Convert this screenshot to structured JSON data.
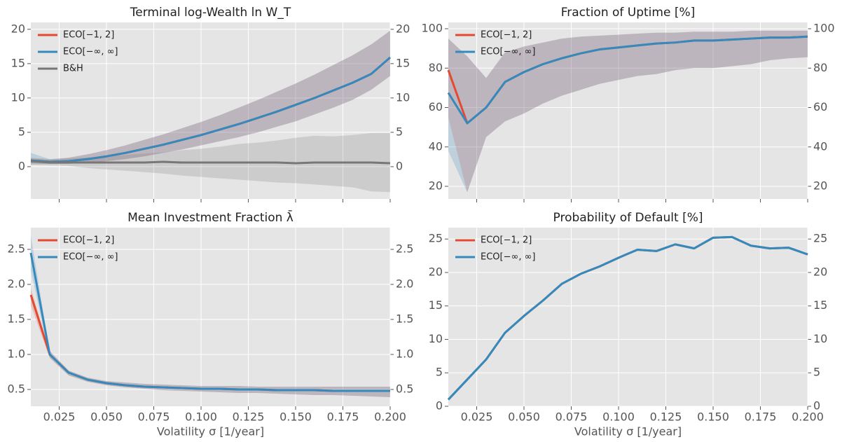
{
  "chart_data": [
    {
      "type": "line",
      "title": "Terminal log-Wealth ln W_T",
      "x": [
        0.01,
        0.02,
        0.03,
        0.04,
        0.05,
        0.06,
        0.07,
        0.08,
        0.09,
        0.1,
        0.11,
        0.12,
        0.13,
        0.14,
        0.15,
        0.16,
        0.17,
        0.18,
        0.19,
        0.2
      ],
      "xlim": [
        0.01,
        0.2
      ],
      "xticks": [
        0.025,
        0.05,
        0.075,
        0.1,
        0.125,
        0.15,
        0.175,
        0.2
      ],
      "ylim": [
        -4.7,
        21
      ],
      "yticks": [
        0,
        5,
        10,
        15,
        20
      ],
      "grid": true,
      "legend": "upper left",
      "series": [
        {
          "name": "ECO[−1, 2]",
          "color": "#e24a33",
          "values": [
            0.9,
            0.7,
            0.8,
            1.1,
            1.5,
            2.0,
            2.6,
            3.2,
            3.9,
            4.6,
            5.4,
            6.2,
            7.1,
            8.0,
            9.0,
            10.0,
            11.1,
            12.2,
            13.5,
            15.9
          ],
          "upper": [
            1.2,
            1.0,
            1.3,
            1.8,
            2.4,
            3.1,
            3.9,
            4.7,
            5.6,
            6.5,
            7.5,
            8.6,
            9.7,
            10.9,
            12.1,
            13.4,
            14.8,
            16.2,
            17.8,
            19.8
          ],
          "lower": [
            0.5,
            0.4,
            0.4,
            0.6,
            0.8,
            1.1,
            1.5,
            2.0,
            2.5,
            3.1,
            3.7,
            4.3,
            5.0,
            5.8,
            6.6,
            7.6,
            8.6,
            9.7,
            11.2,
            13.2
          ]
        },
        {
          "name": "ECO[−∞, ∞]",
          "color": "#348abd",
          "values": [
            0.9,
            0.7,
            0.8,
            1.1,
            1.5,
            2.0,
            2.6,
            3.2,
            3.9,
            4.6,
            5.4,
            6.2,
            7.1,
            8.0,
            9.0,
            10.0,
            11.1,
            12.2,
            13.5,
            15.9
          ],
          "upper": [
            2.0,
            1.1,
            1.3,
            1.8,
            2.4,
            3.1,
            3.9,
            4.7,
            5.6,
            6.5,
            7.5,
            8.6,
            9.7,
            10.9,
            12.1,
            13.4,
            14.8,
            16.2,
            17.8,
            19.8
          ],
          "lower": [
            0.3,
            0.4,
            0.4,
            0.6,
            0.8,
            1.1,
            1.5,
            2.0,
            2.5,
            3.1,
            3.7,
            4.3,
            5.0,
            5.8,
            6.6,
            7.6,
            8.6,
            9.7,
            11.2,
            13.2
          ]
        },
        {
          "name": "B&H",
          "color": "#777777",
          "values": [
            0.8,
            0.6,
            0.6,
            0.6,
            0.6,
            0.6,
            0.6,
            0.7,
            0.6,
            0.6,
            0.6,
            0.6,
            0.6,
            0.6,
            0.5,
            0.6,
            0.6,
            0.6,
            0.6,
            0.5
          ],
          "upper": [
            1.3,
            1.1,
            1.2,
            1.3,
            1.5,
            1.7,
            1.9,
            2.1,
            2.4,
            2.6,
            2.9,
            3.3,
            3.5,
            3.8,
            4.2,
            4.5,
            4.4,
            4.6,
            4.9,
            4.9
          ],
          "lower": [
            0.3,
            0.2,
            0.1,
            -0.2,
            -0.4,
            -0.6,
            -0.8,
            -1.0,
            -1.3,
            -1.5,
            -1.7,
            -1.9,
            -2.1,
            -2.3,
            -2.4,
            -2.6,
            -2.8,
            -3.0,
            -3.6,
            -3.7
          ]
        }
      ]
    },
    {
      "type": "line",
      "title": "Fraction of Uptime [%]",
      "x": [
        0.01,
        0.02,
        0.03,
        0.04,
        0.05,
        0.06,
        0.07,
        0.08,
        0.09,
        0.1,
        0.11,
        0.12,
        0.13,
        0.14,
        0.15,
        0.16,
        0.17,
        0.18,
        0.19,
        0.2
      ],
      "xlim": [
        0.01,
        0.2
      ],
      "xticks": [
        0.025,
        0.05,
        0.075,
        0.1,
        0.125,
        0.15,
        0.175,
        0.2
      ],
      "ylim": [
        13.6,
        103.2
      ],
      "yticks": [
        20,
        40,
        60,
        80,
        100
      ],
      "grid": true,
      "legend": "upper left",
      "series": [
        {
          "name": "ECO[−1, 2]",
          "color": "#e24a33",
          "values": [
            79,
            52,
            60,
            73,
            78,
            82,
            85,
            87.5,
            89.5,
            90.5,
            91.5,
            92.5,
            93,
            94,
            94,
            94.5,
            95,
            95.5,
            95.5,
            96
          ],
          "upper": [
            95,
            86,
            75,
            88,
            91,
            93,
            95,
            96,
            96.5,
            97,
            97.5,
            98,
            98,
            98.5,
            98.5,
            98.5,
            99,
            99,
            99,
            99
          ],
          "lower": [
            55,
            17,
            45,
            53,
            57,
            62,
            66,
            69,
            72,
            74,
            76,
            77,
            79,
            80,
            80,
            81,
            82,
            84,
            85,
            85.5
          ]
        },
        {
          "name": "ECO[−∞, ∞]",
          "color": "#348abd",
          "values": [
            67.5,
            52,
            60,
            73,
            78,
            82,
            85,
            87.5,
            89.5,
            90.5,
            91.5,
            92.5,
            93,
            94,
            94,
            94.5,
            95,
            95.5,
            95.5,
            96
          ],
          "upper": [
            95,
            86,
            75,
            88,
            91,
            93,
            95,
            96,
            96.5,
            97,
            97.5,
            98,
            98,
            98.5,
            98.5,
            98.5,
            99,
            99,
            99,
            99
          ],
          "lower": [
            38,
            17,
            45,
            53,
            57,
            62,
            66,
            69,
            72,
            74,
            76,
            77,
            79,
            80,
            80,
            81,
            82,
            84,
            85,
            85.5
          ]
        }
      ]
    },
    {
      "type": "line",
      "title": "Mean Investment Fraction λ̄",
      "xlabel": "Volatility σ [1/year]",
      "x": [
        0.01,
        0.02,
        0.03,
        0.04,
        0.05,
        0.06,
        0.07,
        0.08,
        0.09,
        0.1,
        0.11,
        0.12,
        0.13,
        0.14,
        0.15,
        0.16,
        0.17,
        0.18,
        0.19,
        0.2
      ],
      "xlim": [
        0.01,
        0.2
      ],
      "xticks": [
        {
          "value": 0.025,
          "label": "0.025"
        },
        {
          "value": 0.05,
          "label": "0.050"
        },
        {
          "value": 0.075,
          "label": "0.075"
        },
        {
          "value": 0.1,
          "label": "0.100"
        },
        {
          "value": 0.125,
          "label": "0.125"
        },
        {
          "value": 0.15,
          "label": "0.150"
        },
        {
          "value": 0.175,
          "label": "0.175"
        },
        {
          "value": 0.2,
          "label": "0.200"
        }
      ],
      "ylim": [
        0.26,
        2.81
      ],
      "yticks": [
        0.5,
        {
          "value": 1,
          "label": "1.0"
        },
        1.5,
        {
          "value": 2,
          "label": "2.0"
        },
        2.5
      ],
      "grid": true,
      "legend": "upper left",
      "series": [
        {
          "name": "ECO[−1, 2]",
          "color": "#e24a33",
          "values": [
            1.85,
            1.0,
            0.74,
            0.64,
            0.59,
            0.56,
            0.54,
            0.53,
            0.52,
            0.51,
            0.51,
            0.5,
            0.5,
            0.49,
            0.49,
            0.49,
            0.48,
            0.48,
            0.48,
            0.48
          ],
          "upper": [
            1.95,
            1.05,
            0.77,
            0.67,
            0.62,
            0.6,
            0.58,
            0.57,
            0.56,
            0.55,
            0.55,
            0.55,
            0.54,
            0.54,
            0.54,
            0.54,
            0.54,
            0.54,
            0.54,
            0.54
          ],
          "lower": [
            1.7,
            0.95,
            0.7,
            0.61,
            0.56,
            0.53,
            0.51,
            0.49,
            0.48,
            0.47,
            0.46,
            0.45,
            0.45,
            0.44,
            0.43,
            0.42,
            0.42,
            0.41,
            0.4,
            0.39
          ]
        },
        {
          "name": "ECO[−∞, ∞]",
          "color": "#348abd",
          "values": [
            2.45,
            1.0,
            0.74,
            0.64,
            0.59,
            0.56,
            0.54,
            0.53,
            0.52,
            0.51,
            0.51,
            0.5,
            0.5,
            0.49,
            0.49,
            0.49,
            0.48,
            0.48,
            0.48,
            0.48
          ],
          "upper": [
            2.7,
            1.05,
            0.77,
            0.67,
            0.62,
            0.6,
            0.58,
            0.57,
            0.56,
            0.55,
            0.55,
            0.55,
            0.54,
            0.54,
            0.54,
            0.54,
            0.54,
            0.54,
            0.54,
            0.54
          ],
          "lower": [
            2.2,
            0.95,
            0.7,
            0.61,
            0.56,
            0.53,
            0.51,
            0.49,
            0.48,
            0.47,
            0.46,
            0.45,
            0.45,
            0.44,
            0.43,
            0.42,
            0.42,
            0.41,
            0.4,
            0.39
          ]
        }
      ]
    },
    {
      "type": "line",
      "title": "Probability of Default [%]",
      "xlabel": "Volatility σ [1/year]",
      "x": [
        0.01,
        0.02,
        0.03,
        0.04,
        0.05,
        0.06,
        0.07,
        0.08,
        0.09,
        0.1,
        0.11,
        0.12,
        0.13,
        0.14,
        0.15,
        0.16,
        0.17,
        0.18,
        0.19,
        0.2
      ],
      "xlim": [
        0.01,
        0.2
      ],
      "xticks": [
        {
          "value": 0.025,
          "label": "0.025"
        },
        {
          "value": 0.05,
          "label": "0.050"
        },
        {
          "value": 0.075,
          "label": "0.075"
        },
        {
          "value": 0.1,
          "label": "0.100"
        },
        {
          "value": 0.125,
          "label": "0.125"
        },
        {
          "value": 0.15,
          "label": "0.150"
        },
        {
          "value": 0.175,
          "label": "0.175"
        },
        {
          "value": 0.2,
          "label": "0.200"
        }
      ],
      "ylim": [
        0,
        26.7
      ],
      "yticks": [
        0,
        5,
        10,
        15,
        20,
        25
      ],
      "grid": true,
      "legend": "upper left",
      "series": [
        {
          "name": "ECO[−1, 2]",
          "color": "#e24a33",
          "values": [
            1.0,
            4.0,
            7.0,
            11.0,
            13.5,
            15.8,
            18.3,
            19.8,
            20.9,
            22.2,
            23.4,
            23.2,
            24.2,
            23.6,
            25.2,
            25.3,
            24.0,
            23.6,
            23.7,
            22.7
          ]
        },
        {
          "name": "ECO[−∞, ∞]",
          "color": "#348abd",
          "values": [
            1.0,
            4.0,
            7.0,
            11.0,
            13.5,
            15.8,
            18.3,
            19.8,
            20.9,
            22.2,
            23.4,
            23.2,
            24.2,
            23.6,
            25.2,
            25.3,
            24.0,
            23.6,
            23.7,
            22.7
          ]
        }
      ]
    }
  ]
}
